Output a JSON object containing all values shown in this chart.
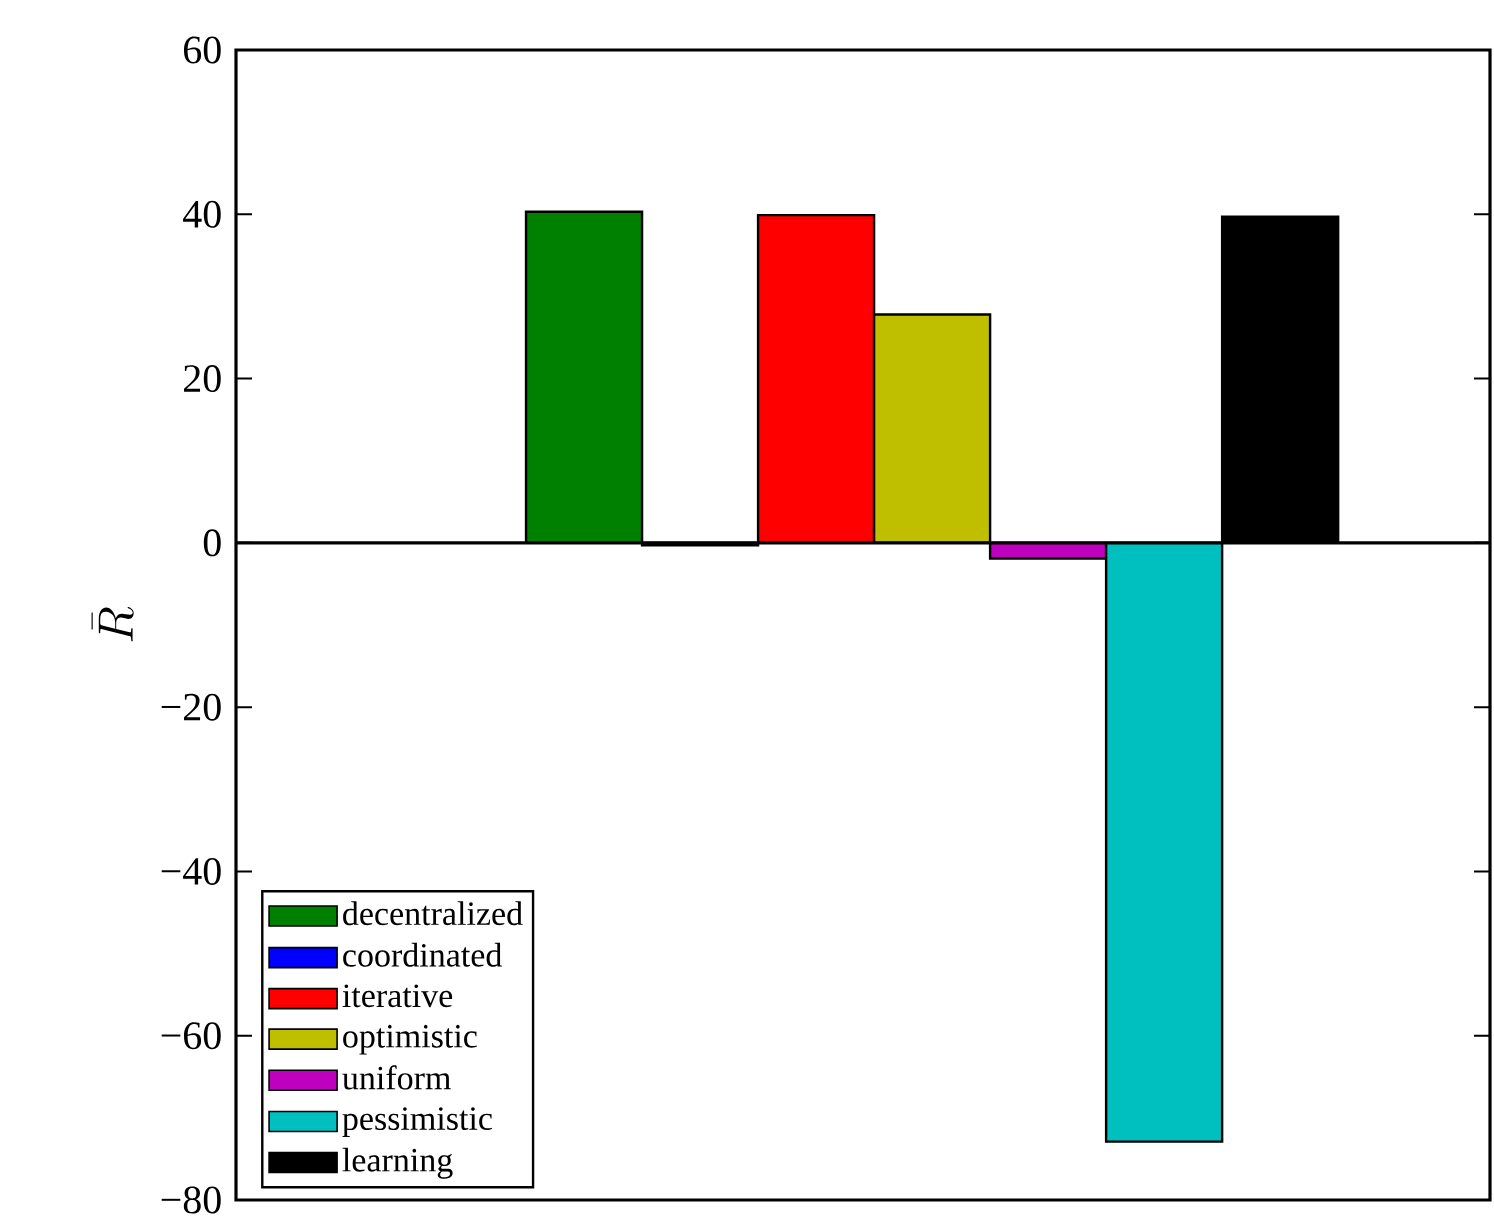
{
  "chart_data": {
    "type": "bar",
    "ylabel": "\\bar{R}",
    "categories": [
      null
    ],
    "series": [
      {
        "name": "decentralized",
        "color": "#008000",
        "values": [
          40.3
        ]
      },
      {
        "name": "coordinated",
        "color": "#0000ff",
        "values": [
          -0.3
        ]
      },
      {
        "name": "iterative",
        "color": "#ff0000",
        "values": [
          39.9
        ]
      },
      {
        "name": "optimistic",
        "color": "#bfbf00",
        "values": [
          27.8
        ]
      },
      {
        "name": "uniform",
        "color": "#bf00bf",
        "values": [
          -1.9
        ]
      },
      {
        "name": "pessimistic",
        "color": "#00bfbf",
        "values": [
          -72.9
        ]
      },
      {
        "name": "learning",
        "color": "#000000",
        "values": [
          39.7
        ]
      }
    ],
    "ylim": [
      -80,
      60
    ],
    "yticks": [
      {
        "value": -80,
        "label": "−80"
      },
      {
        "value": -60,
        "label": "−60"
      },
      {
        "value": -40,
        "label": "−40"
      },
      {
        "value": -20,
        "label": "−20"
      },
      0,
      20,
      40,
      60
    ],
    "ref_lines": [
      {
        "axis": "y",
        "value": 0,
        "color": "#000000"
      }
    ],
    "grid": false,
    "legend": "bottom left",
    "tick_labels": "y"
  }
}
